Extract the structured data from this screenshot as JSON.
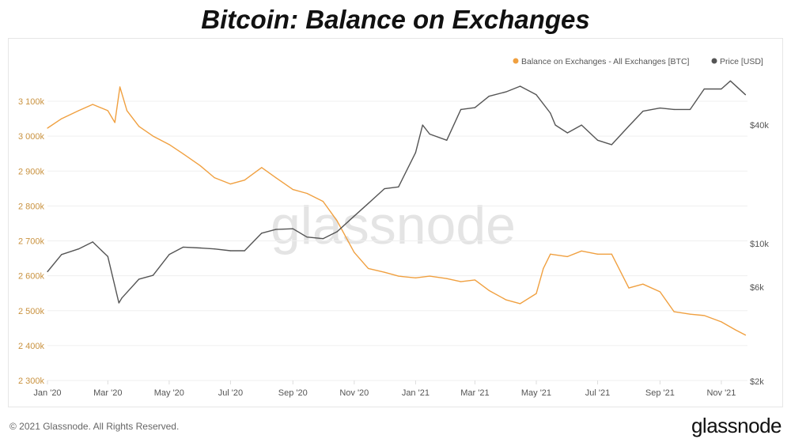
{
  "title": "Bitcoin: Balance on Exchanges",
  "footer": {
    "copyright": "© 2021 Glassnode. All Rights Reserved.",
    "logo": "glassnode"
  },
  "watermark": "glassnode",
  "chart_data": {
    "type": "line",
    "title": "Bitcoin: Balance on Exchanges",
    "legend_position": "top-right",
    "grid": true,
    "x_ticks": [
      "Jan '20",
      "Mar '20",
      "May '20",
      "Jul '20",
      "Sep '20",
      "Nov '20",
      "Jan '21",
      "Mar '21",
      "May '21",
      "Jul '21",
      "Sep '21",
      "Nov '21"
    ],
    "x_tick_dates": [
      "2020-01-01",
      "2020-03-01",
      "2020-05-01",
      "2020-07-01",
      "2020-09-01",
      "2020-11-01",
      "2021-01-01",
      "2021-03-01",
      "2021-05-01",
      "2021-07-01",
      "2021-09-01",
      "2021-11-01"
    ],
    "xlim": [
      "2020-01-01",
      "2021-11-27"
    ],
    "y_left": {
      "ticks": [
        "2 300k",
        "2 400k",
        "2 500k",
        "2 600k",
        "2 700k",
        "2 800k",
        "2 900k",
        "3 000k",
        "3 100k"
      ],
      "tick_values": [
        2300,
        2400,
        2500,
        2600,
        2700,
        2800,
        2900,
        3000,
        3100
      ],
      "ylim": [
        2300,
        3100
      ],
      "unit": "k BTC",
      "color": "#c9923f"
    },
    "y_right": {
      "ticks": [
        "$2k",
        "$6k",
        "$10k",
        "$40k"
      ],
      "tick_values": [
        2000,
        6000,
        10000,
        40000
      ],
      "scale": "log",
      "ylim": [
        2000,
        65000
      ]
    },
    "series": [
      {
        "name": "Balance on Exchanges - All Exchanges [BTC]",
        "axis": "left",
        "color": "#f0a040",
        "points": [
          [
            "2020-01-01",
            3023
          ],
          [
            "2020-01-15",
            3050
          ],
          [
            "2020-02-01",
            3073
          ],
          [
            "2020-02-15",
            3091
          ],
          [
            "2020-03-01",
            3073
          ],
          [
            "2020-03-08",
            3039
          ],
          [
            "2020-03-13",
            3141
          ],
          [
            "2020-03-20",
            3073
          ],
          [
            "2020-04-01",
            3028
          ],
          [
            "2020-04-15",
            3000
          ],
          [
            "2020-05-01",
            2976
          ],
          [
            "2020-05-15",
            2949
          ],
          [
            "2020-06-01",
            2915
          ],
          [
            "2020-06-15",
            2881
          ],
          [
            "2020-07-01",
            2863
          ],
          [
            "2020-07-15",
            2874
          ],
          [
            "2020-08-01",
            2910
          ],
          [
            "2020-08-15",
            2881
          ],
          [
            "2020-09-01",
            2847
          ],
          [
            "2020-09-15",
            2836
          ],
          [
            "2020-10-01",
            2813
          ],
          [
            "2020-10-15",
            2757
          ],
          [
            "2020-11-01",
            2667
          ],
          [
            "2020-11-15",
            2621
          ],
          [
            "2020-12-01",
            2610
          ],
          [
            "2020-12-15",
            2599
          ],
          [
            "2021-01-01",
            2594
          ],
          [
            "2021-01-15",
            2599
          ],
          [
            "2021-02-01",
            2592
          ],
          [
            "2021-02-15",
            2583
          ],
          [
            "2021-03-01",
            2588
          ],
          [
            "2021-03-15",
            2558
          ],
          [
            "2021-04-01",
            2531
          ],
          [
            "2021-04-15",
            2520
          ],
          [
            "2021-05-01",
            2549
          ],
          [
            "2021-05-08",
            2621
          ],
          [
            "2021-05-15",
            2662
          ],
          [
            "2021-06-01",
            2655
          ],
          [
            "2021-06-15",
            2671
          ],
          [
            "2021-07-01",
            2662
          ],
          [
            "2021-07-15",
            2662
          ],
          [
            "2021-08-01",
            2565
          ],
          [
            "2021-08-15",
            2576
          ],
          [
            "2021-09-01",
            2554
          ],
          [
            "2021-09-15",
            2497
          ],
          [
            "2021-10-01",
            2490
          ],
          [
            "2021-10-15",
            2486
          ],
          [
            "2021-11-01",
            2468
          ],
          [
            "2021-11-15",
            2445
          ],
          [
            "2021-11-25",
            2430
          ]
        ]
      },
      {
        "name": "Price [USD]",
        "axis": "right",
        "color": "#555555",
        "points": [
          [
            "2020-01-01",
            7200
          ],
          [
            "2020-01-15",
            8800
          ],
          [
            "2020-02-01",
            9400
          ],
          [
            "2020-02-15",
            10200
          ],
          [
            "2020-03-01",
            8600
          ],
          [
            "2020-03-12",
            5000
          ],
          [
            "2020-03-15",
            5300
          ],
          [
            "2020-04-01",
            6600
          ],
          [
            "2020-04-15",
            6900
          ],
          [
            "2020-05-01",
            8800
          ],
          [
            "2020-05-15",
            9600
          ],
          [
            "2020-06-01",
            9500
          ],
          [
            "2020-06-15",
            9400
          ],
          [
            "2020-07-01",
            9200
          ],
          [
            "2020-07-15",
            9200
          ],
          [
            "2020-08-01",
            11300
          ],
          [
            "2020-08-15",
            11800
          ],
          [
            "2020-09-01",
            11900
          ],
          [
            "2020-09-15",
            10800
          ],
          [
            "2020-10-01",
            10600
          ],
          [
            "2020-10-15",
            11500
          ],
          [
            "2020-11-01",
            13800
          ],
          [
            "2020-11-15",
            16000
          ],
          [
            "2020-12-01",
            19000
          ],
          [
            "2020-12-15",
            19400
          ],
          [
            "2021-01-01",
            29000
          ],
          [
            "2021-01-08",
            40000
          ],
          [
            "2021-01-15",
            36000
          ],
          [
            "2021-02-01",
            33500
          ],
          [
            "2021-02-15",
            48000
          ],
          [
            "2021-03-01",
            49000
          ],
          [
            "2021-03-15",
            56000
          ],
          [
            "2021-04-01",
            59000
          ],
          [
            "2021-04-15",
            63000
          ],
          [
            "2021-05-01",
            57000
          ],
          [
            "2021-05-15",
            46000
          ],
          [
            "2021-05-20",
            40000
          ],
          [
            "2021-06-01",
            36500
          ],
          [
            "2021-06-15",
            40000
          ],
          [
            "2021-07-01",
            33500
          ],
          [
            "2021-07-15",
            31800
          ],
          [
            "2021-08-01",
            39500
          ],
          [
            "2021-08-15",
            47000
          ],
          [
            "2021-09-01",
            48800
          ],
          [
            "2021-09-15",
            48000
          ],
          [
            "2021-10-01",
            48000
          ],
          [
            "2021-10-15",
            61000
          ],
          [
            "2021-11-01",
            61000
          ],
          [
            "2021-11-10",
            67000
          ],
          [
            "2021-11-25",
            57000
          ]
        ]
      }
    ]
  }
}
